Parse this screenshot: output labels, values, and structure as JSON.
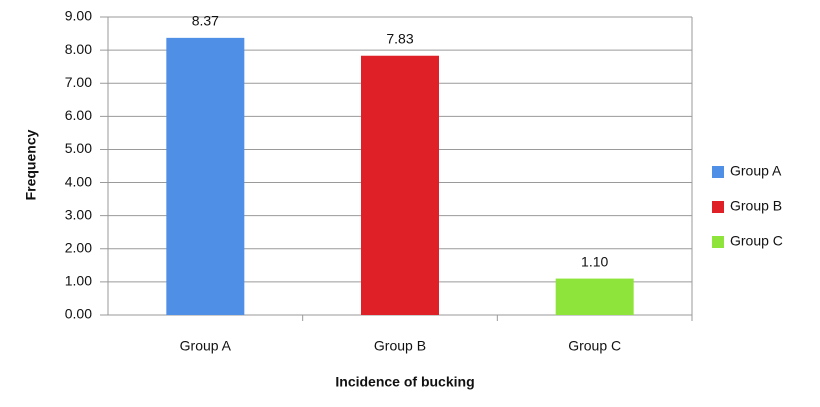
{
  "chart_data": {
    "type": "bar",
    "categories": [
      "Group A",
      "Group B",
      "Group C"
    ],
    "values": [
      8.37,
      7.83,
      1.1
    ],
    "value_labels": [
      "8.37",
      "7.83",
      "1.10"
    ],
    "colors": [
      "#4f8fe6",
      "#e02027",
      "#8ee43a"
    ],
    "x_label": "Incidence of bucking",
    "y_label": "Frequency",
    "ylim": [
      0,
      9
    ],
    "yticks": [
      {
        "value": 0,
        "label": "0.00"
      },
      {
        "value": 1,
        "label": "1.00"
      },
      {
        "value": 2,
        "label": "2.00"
      },
      {
        "value": 3,
        "label": "3.00"
      },
      {
        "value": 4,
        "label": "4.00"
      },
      {
        "value": 5,
        "label": "5.00"
      },
      {
        "value": 6,
        "label": "6.00"
      },
      {
        "value": 7,
        "label": "7.00"
      },
      {
        "value": 8,
        "label": "8.00"
      },
      {
        "value": 9,
        "label": "9.00"
      }
    ],
    "grid": true,
    "legend": "right"
  }
}
